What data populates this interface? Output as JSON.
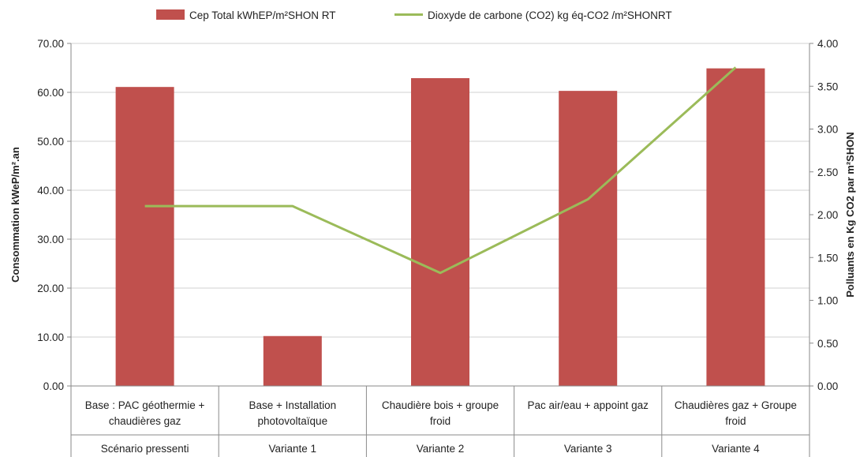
{
  "chart_data": {
    "type": "bar",
    "categories": [
      [
        "Base : PAC géothermie +",
        "chaudières gaz"
      ],
      [
        "Base + Installation",
        "photovoltaïque"
      ],
      [
        "Chaudière bois +  groupe",
        "froid"
      ],
      [
        "Pac air/eau + appoint gaz"
      ],
      [
        "Chaudières gaz + Groupe",
        "froid"
      ]
    ],
    "groups": [
      "Scénario pressenti",
      "Variante 1",
      "Variante 2",
      "Variante 3",
      "Variante 4"
    ],
    "series": [
      {
        "name": "Cep Total kWhEP/m²SHON RT",
        "type": "bar",
        "axis": "left",
        "color": "#c0504d",
        "values": [
          61.1,
          10.2,
          62.9,
          60.3,
          64.9
        ]
      },
      {
        "name": "Dioxyde de carbone (CO2) kg éq-CO2 /m²SHONRT",
        "type": "line",
        "axis": "right",
        "color": "#9bbb59",
        "values": [
          2.1,
          2.1,
          1.32,
          2.18,
          3.72
        ]
      }
    ],
    "ylabel": "Consommation kWeP/m².an",
    "y2label": "Polluants en Kg CO2 par m²SHON",
    "ylim": [
      0,
      70
    ],
    "yticks": [
      "0.00",
      "10.00",
      "20.00",
      "30.00",
      "40.00",
      "50.00",
      "60.00",
      "70.00"
    ],
    "y2lim": [
      0,
      4
    ],
    "y2ticks": [
      "0.00",
      "0.50",
      "1.00",
      "1.50",
      "2.00",
      "2.50",
      "3.00",
      "3.50",
      "4.00"
    ],
    "grid": true,
    "legend": "top"
  }
}
